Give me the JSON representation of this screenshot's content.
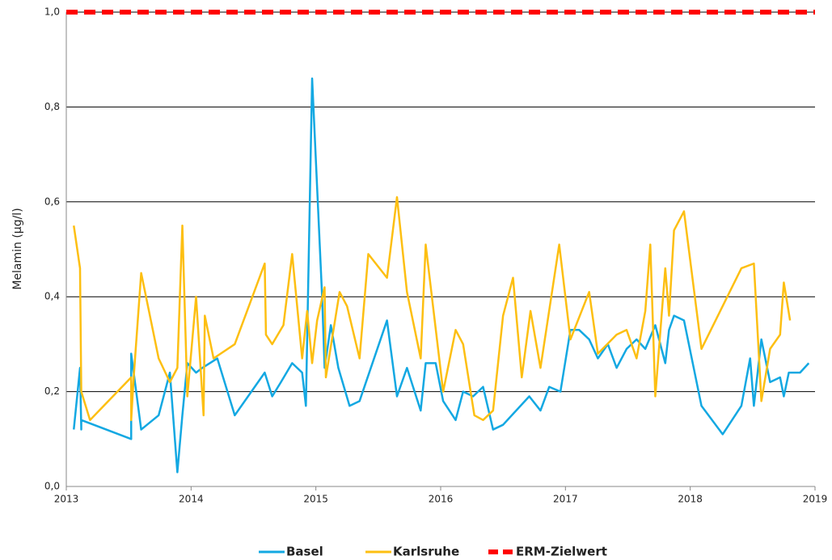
{
  "chart_data": {
    "type": "line",
    "y_label": "Melamin (µg/l)",
    "xlim": [
      2013,
      2019
    ],
    "xticks": [
      2013,
      2014,
      2015,
      2016,
      2017,
      2018,
      2019
    ],
    "ylim": [
      0,
      1
    ],
    "yticks": [
      {
        "value": 0,
        "label": "0,0"
      },
      {
        "value": 0.2,
        "label": "0,2"
      },
      {
        "value": 0.4,
        "label": "0,4"
      },
      {
        "value": 0.6,
        "label": "0,6"
      },
      {
        "value": 0.8,
        "label": "0,8"
      },
      {
        "value": 1,
        "label": "1,0"
      }
    ],
    "grid": true,
    "legend": "bottom",
    "series": [
      {
        "name": "Basel",
        "color": "#13a8e2",
        "dashed": false,
        "x": [
          2013.06,
          2013.11,
          2013.12,
          2013.12,
          2013.52,
          2013.52,
          2013.6,
          2013.74,
          2013.83,
          2013.89,
          2013.93,
          2013.97,
          2014.04,
          2014.09,
          2014.21,
          2014.35,
          2014.59,
          2014.65,
          2014.72,
          2014.81,
          2014.89,
          2014.92,
          2014.97,
          2015.05,
          2015.07,
          2015.12,
          2015.18,
          2015.27,
          2015.35,
          2015.57,
          2015.65,
          2015.73,
          2015.84,
          2015.88,
          2015.96,
          2016.02,
          2016.12,
          2016.18,
          2016.26,
          2016.34,
          2016.42,
          2016.5,
          2016.71,
          2016.8,
          2016.87,
          2016.96,
          2017.04,
          2017.11,
          2017.19,
          2017.26,
          2017.34,
          2017.41,
          2017.49,
          2017.57,
          2017.64,
          2017.72,
          2017.8,
          2017.83,
          2017.87,
          2017.95,
          2018.09,
          2018.26,
          2018.41,
          2018.48,
          2018.51,
          2018.57,
          2018.64,
          2018.72,
          2018.75,
          2018.79,
          2018.88,
          2018.95
        ],
        "values": [
          0.12,
          0.25,
          0.12,
          0.14,
          0.1,
          0.28,
          0.12,
          0.15,
          0.24,
          0.03,
          0.15,
          0.26,
          0.24,
          0.25,
          0.27,
          0.15,
          0.24,
          0.19,
          0.22,
          0.26,
          0.24,
          0.17,
          0.86,
          0.4,
          0.25,
          0.34,
          0.25,
          0.17,
          0.18,
          0.35,
          0.19,
          0.25,
          0.16,
          0.26,
          0.26,
          0.18,
          0.14,
          0.2,
          0.19,
          0.21,
          0.12,
          0.13,
          0.19,
          0.16,
          0.21,
          0.2,
          0.33,
          0.33,
          0.31,
          0.27,
          0.3,
          0.25,
          0.29,
          0.31,
          0.29,
          0.34,
          0.26,
          0.33,
          0.36,
          0.35,
          0.17,
          0.11,
          0.17,
          0.27,
          0.17,
          0.31,
          0.22,
          0.23,
          0.19,
          0.24,
          0.24,
          0.26
        ]
      },
      {
        "name": "Karlsruhe",
        "color": "#fdbf12",
        "dashed": false,
        "x": [
          2013.06,
          2013.11,
          2013.12,
          2013.19,
          2013.52,
          2013.52,
          2013.54,
          2013.6,
          2013.74,
          2013.83,
          2013.89,
          2013.93,
          2013.97,
          2014.04,
          2014.1,
          2014.11,
          2014.18,
          2014.35,
          2014.59,
          2014.6,
          2014.65,
          2014.74,
          2014.81,
          2014.89,
          2014.93,
          2014.97,
          2015.01,
          2015.07,
          2015.08,
          2015.19,
          2015.25,
          2015.35,
          2015.42,
          2015.57,
          2015.65,
          2015.73,
          2015.84,
          2015.88,
          2016.02,
          2016.12,
          2016.18,
          2016.27,
          2016.34,
          2016.42,
          2016.5,
          2016.58,
          2016.65,
          2016.72,
          2016.8,
          2016.95,
          2017.04,
          2017.19,
          2017.26,
          2017.41,
          2017.49,
          2017.57,
          2017.64,
          2017.68,
          2017.72,
          2017.8,
          2017.83,
          2017.87,
          2017.95,
          2018.09,
          2018.41,
          2018.51,
          2018.57,
          2018.64,
          2018.72,
          2018.75,
          2018.8
        ],
        "values": [
          0.55,
          0.46,
          0.2,
          0.14,
          0.23,
          0.14,
          0.23,
          0.45,
          0.27,
          0.22,
          0.25,
          0.55,
          0.19,
          0.4,
          0.15,
          0.36,
          0.27,
          0.3,
          0.47,
          0.32,
          0.3,
          0.34,
          0.49,
          0.27,
          0.37,
          0.26,
          0.35,
          0.42,
          0.23,
          0.41,
          0.38,
          0.27,
          0.49,
          0.44,
          0.61,
          0.41,
          0.27,
          0.51,
          0.2,
          0.33,
          0.3,
          0.15,
          0.14,
          0.16,
          0.36,
          0.44,
          0.23,
          0.37,
          0.25,
          0.51,
          0.31,
          0.41,
          0.28,
          0.32,
          0.33,
          0.27,
          0.37,
          0.51,
          0.19,
          0.46,
          0.36,
          0.54,
          0.58,
          0.29,
          0.46,
          0.47,
          0.18,
          0.29,
          0.32,
          0.43,
          0.35
        ]
      },
      {
        "name": "ERM-Zielwert",
        "color": "#ff0000",
        "dashed": true,
        "x": [
          2013,
          2019
        ],
        "values": [
          1,
          1
        ]
      }
    ]
  }
}
